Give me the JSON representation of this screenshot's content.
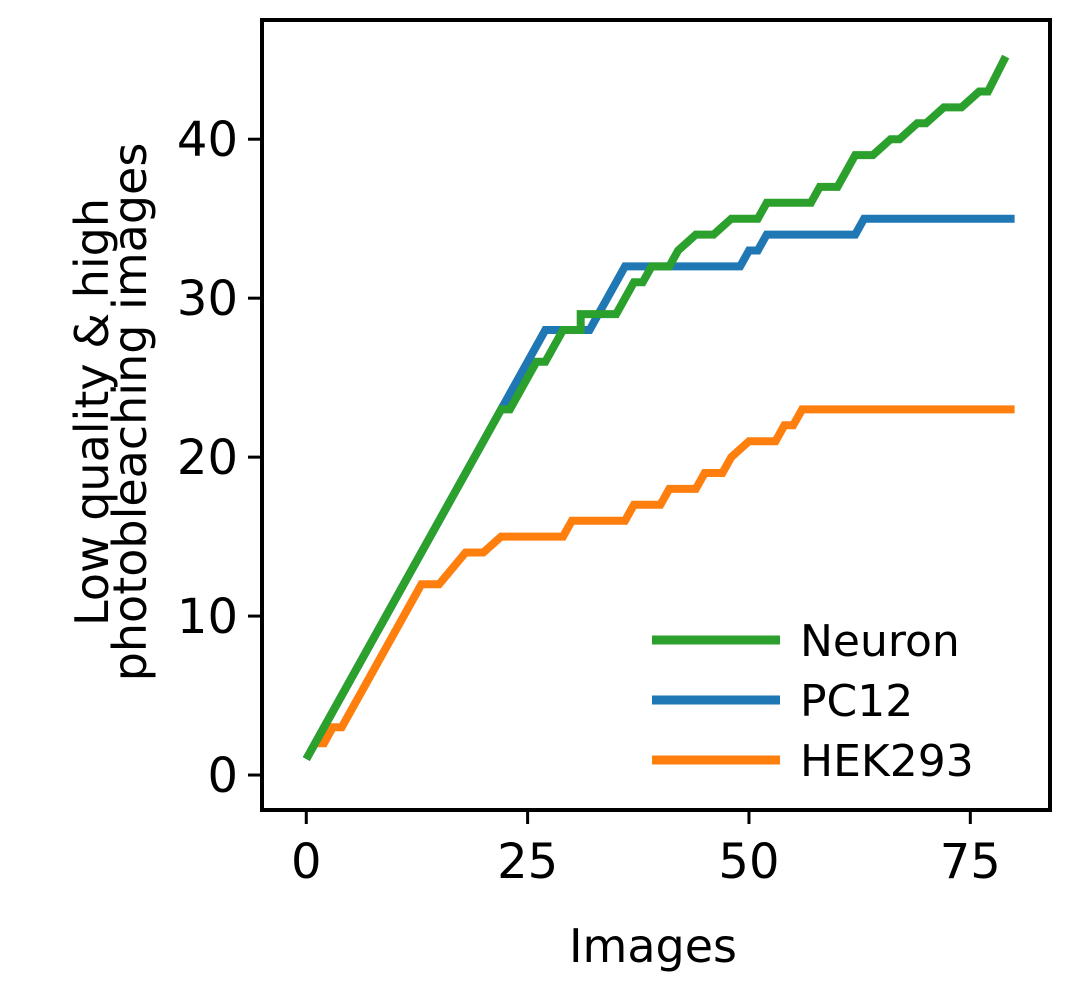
{
  "chart_data": {
    "type": "line",
    "title": "",
    "xlabel": "Images",
    "ylabel_lines": [
      "Low quality  & high",
      "photobleaching images"
    ],
    "xlim": [
      -5,
      84
    ],
    "ylim": [
      -2.2,
      47.5
    ],
    "xticks": [
      0,
      25,
      50,
      75
    ],
    "yticks": [
      0,
      10,
      20,
      30,
      40
    ],
    "grid": false,
    "legend_position": "bottom-right",
    "series": [
      {
        "name": "Neuron",
        "color": "#2ca02c",
        "points": [
          [
            0,
            1
          ],
          [
            22,
            23
          ],
          [
            23,
            23
          ],
          [
            25,
            25
          ],
          [
            26,
            26
          ],
          [
            27,
            26
          ],
          [
            29,
            28
          ],
          [
            31,
            28
          ],
          [
            31,
            29
          ],
          [
            33,
            29
          ],
          [
            35,
            29
          ],
          [
            37,
            31
          ],
          [
            38,
            31
          ],
          [
            39,
            32
          ],
          [
            41,
            32
          ],
          [
            42,
            33
          ],
          [
            44,
            34
          ],
          [
            46,
            34
          ],
          [
            48,
            35
          ],
          [
            50,
            35
          ],
          [
            51,
            35
          ],
          [
            52,
            36
          ],
          [
            54,
            36
          ],
          [
            57,
            36
          ],
          [
            58,
            37
          ],
          [
            60,
            37
          ],
          [
            62,
            39
          ],
          [
            64,
            39
          ],
          [
            66,
            40
          ],
          [
            67,
            40
          ],
          [
            69,
            41
          ],
          [
            70,
            41
          ],
          [
            72,
            42
          ],
          [
            74,
            42
          ],
          [
            76,
            43
          ],
          [
            77,
            43
          ],
          [
            79,
            45.2
          ]
        ]
      },
      {
        "name": "PC12",
        "color": "#1f77b4",
        "points": [
          [
            0,
            1
          ],
          [
            22,
            23
          ],
          [
            25,
            26
          ],
          [
            27,
            28
          ],
          [
            29,
            28
          ],
          [
            32,
            28
          ],
          [
            33,
            29
          ],
          [
            34,
            30
          ],
          [
            36,
            32
          ],
          [
            38,
            32
          ],
          [
            42,
            32
          ],
          [
            49,
            32
          ],
          [
            50,
            33
          ],
          [
            51,
            33
          ],
          [
            52,
            34
          ],
          [
            57,
            34
          ],
          [
            62,
            34
          ],
          [
            63,
            35
          ],
          [
            80,
            35
          ]
        ]
      },
      {
        "name": "HEK293",
        "color": "#ff7f0e",
        "points": [
          [
            1,
            2
          ],
          [
            2,
            2
          ],
          [
            3,
            3
          ],
          [
            4,
            3
          ],
          [
            13,
            12
          ],
          [
            15,
            12
          ],
          [
            18,
            14
          ],
          [
            20,
            14
          ],
          [
            22,
            15
          ],
          [
            25,
            15
          ],
          [
            29,
            15
          ],
          [
            30,
            16
          ],
          [
            32,
            16
          ],
          [
            36,
            16
          ],
          [
            37,
            17
          ],
          [
            40,
            17
          ],
          [
            41,
            18
          ],
          [
            43,
            18
          ],
          [
            44,
            18
          ],
          [
            45,
            19
          ],
          [
            47,
            19
          ],
          [
            48,
            20
          ],
          [
            50,
            21
          ],
          [
            53,
            21
          ],
          [
            54,
            22
          ],
          [
            55,
            22
          ],
          [
            56,
            23
          ],
          [
            58,
            23
          ],
          [
            80,
            23
          ]
        ]
      }
    ]
  }
}
